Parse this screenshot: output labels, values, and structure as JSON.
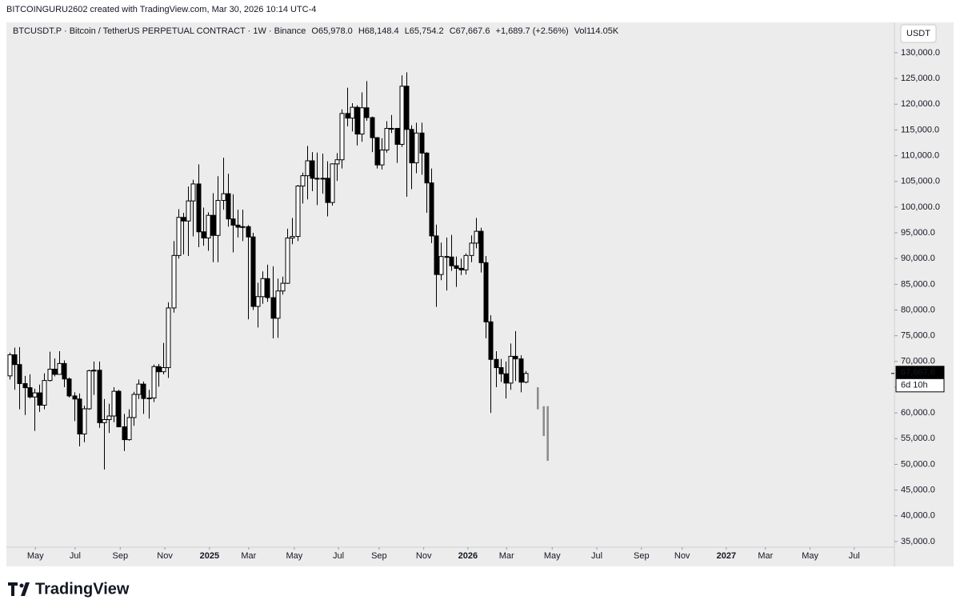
{
  "watermark": "BITCOINGURU2602 created with TradingView.com, Mar 30, 2026 10:14 UTC-4",
  "footer": {
    "logo": "TradingView"
  },
  "legend": {
    "symbol": "BTCUSDT.P · Bitcoin / TetherUS PERPETUAL CONTRACT · 1W · Binance",
    "ohlc": [
      "O65,978.0",
      "H68,148.4",
      "L65,754.2",
      "C67,667.6"
    ],
    "change": "+1,689.7 (+2.56%)",
    "volume": "Vol114.05K"
  },
  "chart_data": {
    "type": "candlestick",
    "currency": "USDT",
    "ylim": [
      33900,
      135900
    ],
    "yticks": [
      {
        "value": 130000,
        "label": "130,000.0"
      },
      {
        "value": 125000,
        "label": "125,000.0"
      },
      {
        "value": 120000,
        "label": "120,000.0"
      },
      {
        "value": 115000,
        "label": "115,000.0"
      },
      {
        "value": 110000,
        "label": "110,000.0"
      },
      {
        "value": 105000,
        "label": "105,000.0"
      },
      {
        "value": 100000,
        "label": "100,000.0"
      },
      {
        "value": 95000,
        "label": "95,000.0"
      },
      {
        "value": 90000,
        "label": "90,000.0"
      },
      {
        "value": 85000,
        "label": "85,000.0"
      },
      {
        "value": 80000,
        "label": "80,000.0"
      },
      {
        "value": 75000,
        "label": "75,000.0"
      },
      {
        "value": 70000,
        "label": "70,000.0"
      },
      {
        "value": 65000,
        "label": "65,000.0"
      },
      {
        "value": 60000,
        "label": "60,000.0"
      },
      {
        "value": 55000,
        "label": "55,000.0"
      },
      {
        "value": 50000,
        "label": "50,000.0"
      },
      {
        "value": 45000,
        "label": "45,000.0"
      },
      {
        "value": 40000,
        "label": "40,000.0"
      },
      {
        "value": 35000,
        "label": "35,000.0"
      }
    ],
    "xlim": [
      -0.65,
      178.4
    ],
    "xticks": [
      {
        "value": 5.2,
        "label": "May"
      },
      {
        "value": 13.2,
        "label": "Jul"
      },
      {
        "value": 22.3,
        "label": "Sep"
      },
      {
        "value": 31.3,
        "label": "Nov"
      },
      {
        "value": 40.3,
        "label": "2025"
      },
      {
        "value": 48.2,
        "label": "Mar"
      },
      {
        "value": 57.4,
        "label": "May"
      },
      {
        "value": 66.3,
        "label": "Jul"
      },
      {
        "value": 74.5,
        "label": "Sep"
      },
      {
        "value": 83.5,
        "label": "Nov"
      },
      {
        "value": 92.4,
        "label": "2026"
      },
      {
        "value": 100.2,
        "label": "Mar"
      },
      {
        "value": 109.4,
        "label": "May"
      },
      {
        "value": 118.4,
        "label": "Jul"
      },
      {
        "value": 127.4,
        "label": "Sep"
      },
      {
        "value": 135.6,
        "label": "Nov"
      },
      {
        "value": 144.5,
        "label": "2027"
      },
      {
        "value": 152.4,
        "label": "Mar"
      },
      {
        "value": 161.4,
        "label": "May"
      },
      {
        "value": 170.3,
        "label": "Jul"
      }
    ],
    "up_color": "#ffffff",
    "down_color": "#000000",
    "border_color": "#000000",
    "projection_color": "#8a8a8a",
    "candles": [
      [
        67200,
        71700,
        66500,
        71300
      ],
      [
        71300,
        72700,
        64500,
        69400
      ],
      [
        69400,
        72800,
        60700,
        65700
      ],
      [
        65700,
        67200,
        59600,
        64900
      ],
      [
        64900,
        67500,
        62800,
        63100
      ],
      [
        63100,
        64700,
        56500,
        63900
      ],
      [
        63900,
        65500,
        60200,
        61500
      ],
      [
        61500,
        67700,
        60700,
        66300
      ],
      [
        66300,
        71900,
        66100,
        68500
      ],
      [
        68500,
        70600,
        67100,
        67500
      ],
      [
        67500,
        72000,
        67500,
        69600
      ],
      [
        69600,
        70200,
        65000,
        66600
      ],
      [
        66600,
        66900,
        63000,
        63300
      ],
      [
        63300,
        64000,
        58400,
        62700
      ],
      [
        62700,
        63800,
        53500,
        55900
      ],
      [
        55900,
        61400,
        54300,
        60800
      ],
      [
        60800,
        68400,
        60600,
        68200
      ],
      [
        68200,
        70000,
        63500,
        68300
      ],
      [
        68300,
        70000,
        57100,
        58100
      ],
      [
        58100,
        62700,
        49000,
        58700
      ],
      [
        58700,
        61800,
        56100,
        59400
      ],
      [
        59400,
        65000,
        58200,
        64200
      ],
      [
        64200,
        64500,
        57200,
        57300
      ],
      [
        57300,
        59800,
        52600,
        54800
      ],
      [
        54800,
        60700,
        54600,
        59100
      ],
      [
        59100,
        64100,
        57500,
        63600
      ],
      [
        63600,
        66500,
        62700,
        65600
      ],
      [
        65600,
        66100,
        59800,
        62800
      ],
      [
        62800,
        64500,
        58900,
        62900
      ],
      [
        62900,
        69400,
        62100,
        69000
      ],
      [
        69000,
        69500,
        65100,
        68000
      ],
      [
        68000,
        73600,
        67500,
        68800
      ],
      [
        68800,
        81500,
        66800,
        80400
      ],
      [
        80400,
        93400,
        79500,
        90600
      ],
      [
        90600,
        99600,
        90000,
        98000
      ],
      [
        98000,
        98900,
        90800,
        97300
      ],
      [
        97300,
        104000,
        90500,
        101200
      ],
      [
        101200,
        105300,
        94300,
        104500
      ],
      [
        104500,
        108300,
        92200,
        95200
      ],
      [
        95200,
        99900,
        92500,
        94000
      ],
      [
        94000,
        99000,
        91500,
        98400
      ],
      [
        98400,
        102700,
        89300,
        94500
      ],
      [
        94500,
        106000,
        89300,
        101300
      ],
      [
        101300,
        109600,
        99500,
        102600
      ],
      [
        102600,
        106500,
        96200,
        97700
      ],
      [
        97700,
        102500,
        91200,
        96500
      ],
      [
        96500,
        99500,
        94100,
        96100
      ],
      [
        96100,
        99500,
        93400,
        96200
      ],
      [
        96200,
        96500,
        78200,
        94200
      ],
      [
        94200,
        95000,
        80000,
        80700
      ],
      [
        80700,
        85300,
        76600,
        82600
      ],
      [
        82600,
        87500,
        81200,
        86100
      ],
      [
        86100,
        88800,
        81600,
        82400
      ],
      [
        82400,
        88500,
        74500,
        78400
      ],
      [
        78400,
        86100,
        74600,
        83700
      ],
      [
        83700,
        86500,
        83000,
        85200
      ],
      [
        85200,
        95800,
        85100,
        94000
      ],
      [
        94000,
        97900,
        92800,
        94300
      ],
      [
        94300,
        104300,
        93400,
        104100
      ],
      [
        104100,
        106700,
        100700,
        106100
      ],
      [
        106100,
        111900,
        101500,
        109000
      ],
      [
        109000,
        110700,
        103100,
        105600
      ],
      [
        105600,
        110600,
        100400,
        105500
      ],
      [
        105500,
        110400,
        102600,
        105600
      ],
      [
        105600,
        108900,
        98200,
        100900
      ],
      [
        100900,
        108500,
        100300,
        108400
      ],
      [
        108400,
        110500,
        105100,
        109200
      ],
      [
        109200,
        119000,
        107500,
        118200
      ],
      [
        118200,
        123200,
        115700,
        117300
      ],
      [
        117300,
        120200,
        114700,
        119400
      ],
      [
        119400,
        119800,
        112000,
        114200
      ],
      [
        114200,
        122300,
        112700,
        119300
      ],
      [
        119300,
        124500,
        116800,
        117400
      ],
      [
        117400,
        117600,
        110700,
        113500
      ],
      [
        113500,
        113600,
        107500,
        108200
      ],
      [
        108200,
        113400,
        107300,
        111100
      ],
      [
        111100,
        116700,
        110600,
        115300
      ],
      [
        115300,
        117900,
        114400,
        115300
      ],
      [
        115300,
        115400,
        108600,
        112200
      ],
      [
        112200,
        125600,
        111700,
        123500
      ],
      [
        123500,
        126200,
        102000,
        115100
      ],
      [
        115100,
        115900,
        103500,
        108600
      ],
      [
        108600,
        116400,
        106600,
        114400
      ],
      [
        114400,
        116400,
        106300,
        110500
      ],
      [
        110500,
        110700,
        98900,
        104700
      ],
      [
        104700,
        107500,
        93000,
        94400
      ],
      [
        94400,
        96600,
        80600,
        86900
      ],
      [
        86900,
        93100,
        85800,
        90400
      ],
      [
        90400,
        94100,
        83800,
        90300
      ],
      [
        90300,
        94600,
        87600,
        88600
      ],
      [
        88600,
        90400,
        84500,
        88100
      ],
      [
        88100,
        90000,
        86800,
        87800
      ],
      [
        87800,
        91000,
        86900,
        90600
      ],
      [
        90600,
        94500,
        89300,
        93000
      ],
      [
        93000,
        97900,
        92000,
        95300
      ],
      [
        95300,
        96000,
        87300,
        89200
      ],
      [
        89200,
        90500,
        74500,
        77700
      ],
      [
        77700,
        79000,
        60000,
        70400
      ],
      [
        70400,
        72000,
        65000,
        68800
      ],
      [
        68800,
        70500,
        66000,
        67600
      ],
      [
        67600,
        70000,
        62800,
        65800
      ],
      [
        65800,
        73500,
        64500,
        71000
      ],
      [
        71000,
        75900,
        66200,
        70500
      ],
      [
        70500,
        71200,
        64000,
        65978
      ],
      [
        65978,
        68148.4,
        65754.2,
        67667.6
      ]
    ],
    "projection": [
      {
        "x": 106.5,
        "high": 65000,
        "low": 60700
      },
      {
        "x": 107.7,
        "high": 61300,
        "low": 55500
      },
      {
        "x": 108.5,
        "high": 61300,
        "low": 50700
      }
    ],
    "last_price": {
      "value": 67667.6,
      "label": "67,667.6"
    },
    "countdown": "6d 10h"
  }
}
